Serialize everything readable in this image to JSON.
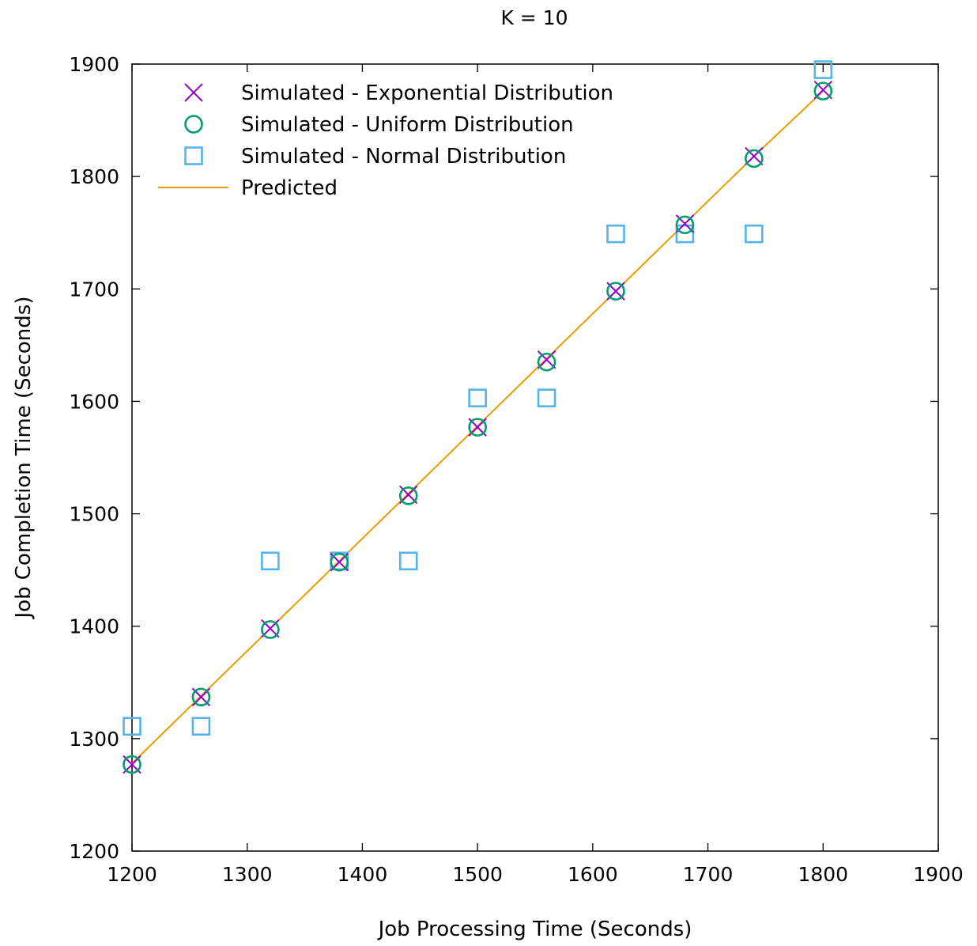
{
  "chart_data": {
    "type": "scatter",
    "title": "K = 10",
    "xlabel": "Job Processing Time (Seconds)",
    "ylabel": "Job Completion Time (Seconds)",
    "xlim": [
      1200,
      1900
    ],
    "ylim": [
      1200,
      1900
    ],
    "xticks": [
      "1200",
      "1300",
      "1400",
      "1500",
      "1600",
      "1700",
      "1800",
      "1900"
    ],
    "yticks": [
      "1200",
      "1300",
      "1400",
      "1500",
      "1600",
      "1700",
      "1800",
      "1900"
    ],
    "grid": false,
    "legend_position": "top-left",
    "series": [
      {
        "name": "Simulated - Exponential Distribution",
        "marker": "x",
        "color": "#9400d3",
        "points": [
          [
            1200,
            1277
          ],
          [
            1260,
            1337
          ],
          [
            1320,
            1398
          ],
          [
            1380,
            1457
          ],
          [
            1440,
            1517
          ],
          [
            1500,
            1577
          ],
          [
            1560,
            1637
          ],
          [
            1620,
            1698
          ],
          [
            1680,
            1758
          ],
          [
            1740,
            1818
          ],
          [
            1800,
            1877
          ]
        ]
      },
      {
        "name": "Simulated - Uniform Distribution",
        "marker": "circle",
        "color": "#009e73",
        "points": [
          [
            1200,
            1277
          ],
          [
            1260,
            1337
          ],
          [
            1320,
            1397
          ],
          [
            1380,
            1457
          ],
          [
            1440,
            1516
          ],
          [
            1500,
            1577
          ],
          [
            1560,
            1635
          ],
          [
            1620,
            1698
          ],
          [
            1680,
            1757
          ],
          [
            1740,
            1816
          ],
          [
            1800,
            1876
          ]
        ]
      },
      {
        "name": "Simulated - Normal Distribution",
        "marker": "square",
        "color": "#56b4e9",
        "points": [
          [
            1200,
            1311
          ],
          [
            1260,
            1311
          ],
          [
            1320,
            1458
          ],
          [
            1380,
            1458
          ],
          [
            1440,
            1458
          ],
          [
            1500,
            1603
          ],
          [
            1560,
            1603
          ],
          [
            1620,
            1749
          ],
          [
            1680,
            1749
          ],
          [
            1740,
            1749
          ],
          [
            1800,
            1895
          ]
        ]
      },
      {
        "name": "Predicted",
        "marker": "line",
        "color": "#e69f00",
        "points": [
          [
            1200,
            1278
          ],
          [
            1260,
            1338
          ],
          [
            1320,
            1398
          ],
          [
            1380,
            1458
          ],
          [
            1440,
            1518
          ],
          [
            1500,
            1578
          ],
          [
            1560,
            1638
          ],
          [
            1620,
            1698
          ],
          [
            1680,
            1758
          ],
          [
            1740,
            1818
          ],
          [
            1800,
            1876
          ]
        ]
      }
    ]
  }
}
